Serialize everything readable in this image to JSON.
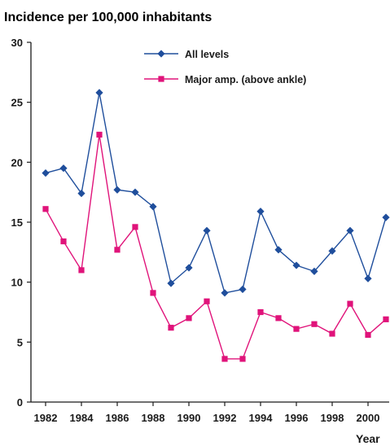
{
  "chart_data": {
    "type": "line",
    "title": "Incidence per 100,000 inhabitants",
    "xlabel": "Year",
    "ylabel": "",
    "ylim": [
      0,
      30
    ],
    "yticks": [
      "0",
      "5",
      "10",
      "15",
      "20",
      "25",
      "30"
    ],
    "xlim": [
      1981,
      2001
    ],
    "xticks": [
      "1982",
      "1984",
      "1986",
      "1988",
      "1990",
      "1992",
      "1994",
      "1996",
      "1998",
      "2000"
    ],
    "grid": false,
    "legend_position": "top-right",
    "x": [
      1982,
      1983,
      1984,
      1985,
      1986,
      1987,
      1988,
      1989,
      1990,
      1991,
      1992,
      1993,
      1994,
      1995,
      1996,
      1997,
      1998,
      1999,
      2000,
      2001
    ],
    "series": [
      {
        "name": "All levels",
        "color": "#1f4e9c",
        "marker": "diamond",
        "values": [
          19.1,
          19.5,
          17.4,
          25.8,
          17.7,
          17.5,
          16.3,
          9.9,
          11.2,
          14.3,
          9.1,
          9.4,
          15.9,
          12.7,
          11.4,
          10.9,
          12.6,
          14.3,
          10.3,
          15.4
        ]
      },
      {
        "name": "Major amp. (above ankle)",
        "color": "#e0137a",
        "marker": "square",
        "values": [
          16.1,
          13.4,
          11.0,
          22.3,
          12.7,
          14.6,
          9.1,
          6.2,
          7.0,
          8.4,
          3.6,
          3.6,
          7.5,
          7.0,
          6.1,
          6.5,
          5.7,
          8.2,
          5.6,
          6.9
        ]
      }
    ]
  }
}
